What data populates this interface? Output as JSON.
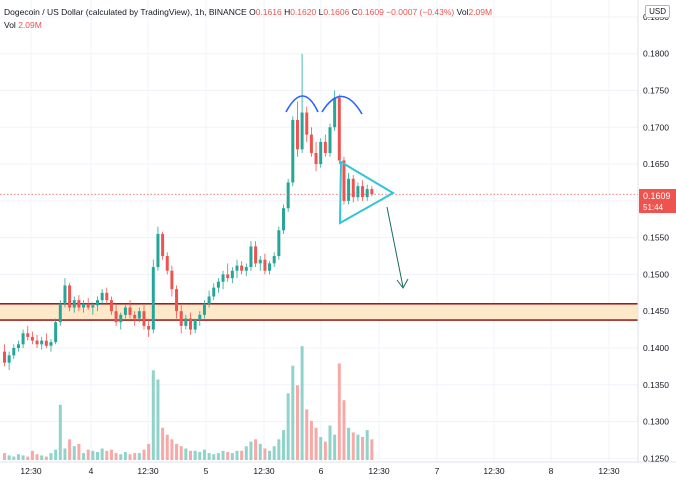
{
  "header": {
    "symbol": "Dogecoin / US Dollar (calculated by TradingView), 1h, BINANCE",
    "o_label": "O",
    "o_value": "0.1616",
    "h_label": "H",
    "h_value": "0.1620",
    "l_label": "L",
    "l_value": "0.1606",
    "c_label": "C",
    "c_value": "0.1609",
    "change": "−0.0007 (−0.43%)",
    "vol_label": "Vol",
    "vol_value": "2.09M"
  },
  "volume_legend": {
    "label": "Vol",
    "value": "2.09M"
  },
  "currency_button": "USD",
  "price_badge": {
    "price": "0.1609",
    "countdown": "51:44"
  },
  "colors": {
    "up": "#26a69a",
    "down": "#ef5350",
    "vol_up": "#8fd3ca",
    "vol_down": "#f6a9a6",
    "pattern_blue": "#2962ff",
    "triangle": "#32c4d9",
    "arrow": "#1b6b64",
    "zone_line": "#8b0000",
    "zone_fill": "#fde9c9",
    "grid": "#f0f3fa"
  },
  "chart_data": {
    "type": "candlestick",
    "y_ticks": [
      "0.1850",
      "0.1800",
      "0.1750",
      "0.1700",
      "0.1650",
      "0.1600",
      "0.1550",
      "0.1500",
      "0.1450",
      "0.1400",
      "0.1350",
      "0.1300",
      "0.1250"
    ],
    "x_ticks": [
      "12:30",
      "4",
      "12:30",
      "5",
      "12:30",
      "6",
      "12:30",
      "7",
      "12:30",
      "8",
      "12:30"
    ],
    "ylim": [
      0.1245,
      0.1873
    ],
    "candles": [
      [
        0.1395,
        0.1405,
        0.1375,
        0.138
      ],
      [
        0.138,
        0.1395,
        0.137,
        0.139
      ],
      [
        0.139,
        0.1405,
        0.1385,
        0.14
      ],
      [
        0.14,
        0.141,
        0.1395,
        0.1405
      ],
      [
        0.1405,
        0.1425,
        0.14,
        0.142
      ],
      [
        0.142,
        0.143,
        0.141,
        0.1415
      ],
      [
        0.1415,
        0.1422,
        0.1405,
        0.141
      ],
      [
        0.141,
        0.1418,
        0.14,
        0.1405
      ],
      [
        0.1405,
        0.1415,
        0.1398,
        0.141
      ],
      [
        0.141,
        0.142,
        0.14,
        0.1403
      ],
      [
        0.1403,
        0.1412,
        0.1395,
        0.1408
      ],
      [
        0.1408,
        0.144,
        0.1405,
        0.1435
      ],
      [
        0.1435,
        0.1465,
        0.143,
        0.146
      ],
      [
        0.146,
        0.1495,
        0.1455,
        0.1485
      ],
      [
        0.1485,
        0.1488,
        0.145,
        0.1455
      ],
      [
        0.1455,
        0.147,
        0.1448,
        0.1465
      ],
      [
        0.1465,
        0.1472,
        0.145,
        0.1455
      ],
      [
        0.1455,
        0.1465,
        0.1448,
        0.146
      ],
      [
        0.146,
        0.1468,
        0.1452,
        0.1455
      ],
      [
        0.1455,
        0.1462,
        0.1445,
        0.1458
      ],
      [
        0.1458,
        0.147,
        0.145,
        0.1465
      ],
      [
        0.1465,
        0.148,
        0.146,
        0.1475
      ],
      [
        0.1475,
        0.1482,
        0.146,
        0.1465
      ],
      [
        0.1465,
        0.147,
        0.1445,
        0.145
      ],
      [
        0.145,
        0.146,
        0.143,
        0.1435
      ],
      [
        0.1435,
        0.1448,
        0.1425,
        0.1445
      ],
      [
        0.1445,
        0.1458,
        0.144,
        0.1455
      ],
      [
        0.1455,
        0.1465,
        0.144,
        0.1445
      ],
      [
        0.1445,
        0.145,
        0.143,
        0.144
      ],
      [
        0.144,
        0.1455,
        0.1435,
        0.145
      ],
      [
        0.145,
        0.1458,
        0.1425,
        0.143
      ],
      [
        0.143,
        0.144,
        0.1415,
        0.1425
      ],
      [
        0.1425,
        0.152,
        0.142,
        0.151
      ],
      [
        0.151,
        0.1565,
        0.1505,
        0.1555
      ],
      [
        0.1555,
        0.1558,
        0.152,
        0.1525
      ],
      [
        0.1525,
        0.153,
        0.15,
        0.1505
      ],
      [
        0.1505,
        0.1512,
        0.147,
        0.148
      ],
      [
        0.148,
        0.1485,
        0.144,
        0.145
      ],
      [
        0.145,
        0.1458,
        0.142,
        0.143
      ],
      [
        0.143,
        0.1445,
        0.1425,
        0.144
      ],
      [
        0.144,
        0.1448,
        0.1418,
        0.1425
      ],
      [
        0.1425,
        0.144,
        0.142,
        0.1438
      ],
      [
        0.1438,
        0.145,
        0.143,
        0.1445
      ],
      [
        0.1445,
        0.1465,
        0.144,
        0.146
      ],
      [
        0.146,
        0.1478,
        0.1455,
        0.147
      ],
      [
        0.147,
        0.1488,
        0.1465,
        0.1482
      ],
      [
        0.1482,
        0.1495,
        0.1475,
        0.149
      ],
      [
        0.149,
        0.1505,
        0.148,
        0.15
      ],
      [
        0.15,
        0.1515,
        0.149,
        0.1495
      ],
      [
        0.1495,
        0.151,
        0.1488,
        0.1505
      ],
      [
        0.1505,
        0.152,
        0.1495,
        0.1512
      ],
      [
        0.1512,
        0.1518,
        0.15,
        0.1505
      ],
      [
        0.1505,
        0.1515,
        0.1498,
        0.151
      ],
      [
        0.151,
        0.1545,
        0.1505,
        0.1538
      ],
      [
        0.1538,
        0.1545,
        0.151,
        0.1515
      ],
      [
        0.1515,
        0.1525,
        0.1505,
        0.152
      ],
      [
        0.152,
        0.1528,
        0.15,
        0.1505
      ],
      [
        0.1505,
        0.1518,
        0.15,
        0.1515
      ],
      [
        0.1515,
        0.153,
        0.151,
        0.1525
      ],
      [
        0.1525,
        0.1565,
        0.152,
        0.156
      ],
      [
        0.156,
        0.1595,
        0.1555,
        0.159
      ],
      [
        0.159,
        0.163,
        0.1585,
        0.1625
      ],
      [
        0.1625,
        0.1715,
        0.162,
        0.171
      ],
      [
        0.171,
        0.1735,
        0.166,
        0.167
      ],
      [
        0.167,
        0.18,
        0.1665,
        0.172
      ],
      [
        0.172,
        0.1728,
        0.168,
        0.169
      ],
      [
        0.169,
        0.17,
        0.166,
        0.1665
      ],
      [
        0.1665,
        0.168,
        0.164,
        0.165
      ],
      [
        0.165,
        0.1685,
        0.1645,
        0.168
      ],
      [
        0.168,
        0.169,
        0.166,
        0.1665
      ],
      [
        0.1665,
        0.1705,
        0.166,
        0.17
      ],
      [
        0.17,
        0.175,
        0.1695,
        0.174
      ],
      [
        0.174,
        0.1745,
        0.165,
        0.1655
      ],
      [
        0.1655,
        0.166,
        0.1595,
        0.16
      ],
      [
        0.16,
        0.1638,
        0.1595,
        0.163
      ],
      [
        0.163,
        0.1635,
        0.1598,
        0.1605
      ],
      [
        0.1605,
        0.1625,
        0.16,
        0.162
      ],
      [
        0.162,
        0.1628,
        0.16,
        0.1605
      ],
      [
        0.1605,
        0.1622,
        0.16,
        0.1616
      ],
      [
        0.1616,
        0.162,
        0.1606,
        0.1609
      ]
    ],
    "volume": [
      6,
      4,
      3,
      5,
      4,
      3,
      8,
      5,
      4,
      3,
      6,
      9,
      48,
      10,
      18,
      12,
      14,
      6,
      9,
      8,
      7,
      10,
      8,
      9,
      6,
      5,
      7,
      5,
      6,
      6,
      9,
      14,
      78,
      70,
      28,
      22,
      18,
      14,
      12,
      10,
      8,
      8,
      7,
      9,
      6,
      5,
      6,
      8,
      7,
      6,
      8,
      8,
      12,
      16,
      18,
      14,
      10,
      8,
      12,
      18,
      26,
      58,
      82,
      65,
      99,
      44,
      34,
      28,
      20,
      16,
      30,
      22,
      84,
      52,
      28,
      24,
      22,
      20,
      26,
      18
    ],
    "resistance_zone": [
      0.1438,
      0.146
    ],
    "current_price": 0.1609
  }
}
